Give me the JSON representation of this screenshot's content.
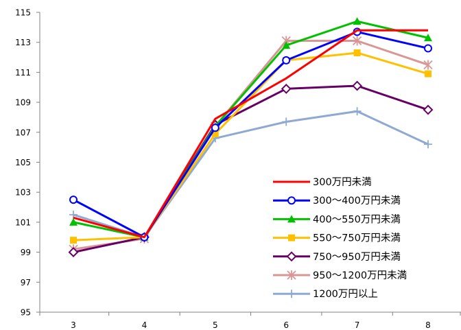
{
  "chart_data": {
    "type": "line",
    "title": "",
    "xlabel": "",
    "ylabel": "",
    "categories": [
      "3",
      "4",
      "5",
      "6",
      "7",
      "8"
    ],
    "ylim": [
      95,
      115
    ],
    "yticks": [
      "95",
      "97",
      "99",
      "101",
      "103",
      "105",
      "107",
      "109",
      "111",
      "113",
      "115"
    ],
    "grid": false,
    "legend_position": "bottom-right",
    "series": [
      {
        "name": "300万円未満",
        "color": "#ff0000",
        "marker": "none",
        "values": [
          101.3,
          100.0,
          107.9,
          110.6,
          113.8,
          113.8
        ]
      },
      {
        "name": "300～400万円未満",
        "color": "#0000ff",
        "marker": "circle-open",
        "values": [
          102.5,
          100.0,
          107.3,
          111.8,
          113.7,
          112.6
        ]
      },
      {
        "name": "400～550万円未満",
        "color": "#00c000",
        "marker": "triangle",
        "values": [
          101.0,
          100.0,
          107.4,
          112.8,
          114.4,
          113.3
        ]
      },
      {
        "name": "550～750万円未満",
        "color": "#ffc000",
        "marker": "square",
        "values": [
          99.8,
          100.0,
          106.9,
          111.8,
          112.3,
          110.9
        ]
      },
      {
        "name": "750～950万円未満",
        "color": "#660066",
        "marker": "diamond-open",
        "values": [
          99.0,
          100.0,
          107.5,
          109.9,
          110.1,
          108.5
        ]
      },
      {
        "name": "950～1200万円未満",
        "color": "#d99694",
        "marker": "asterisk",
        "values": [
          99.2,
          99.9,
          107.4,
          113.1,
          113.1,
          111.5
        ]
      },
      {
        "name": "1200万円以上",
        "color": "#8eaad2",
        "marker": "plus",
        "values": [
          101.5,
          100.0,
          106.6,
          107.7,
          108.4,
          106.2
        ]
      }
    ]
  }
}
